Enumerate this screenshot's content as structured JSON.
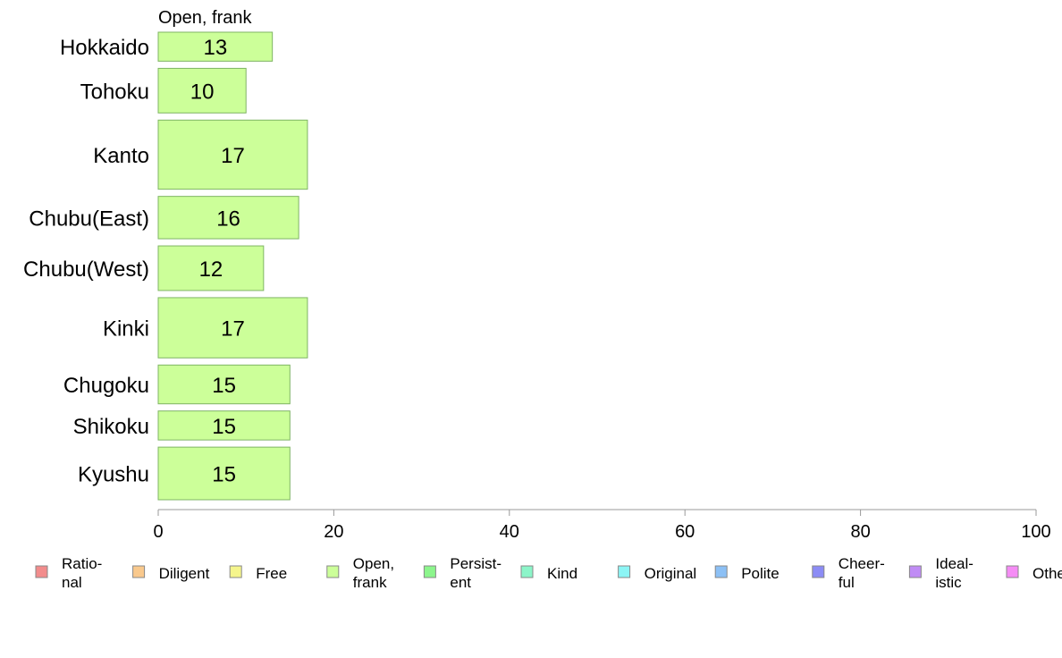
{
  "chart_data": {
    "type": "bar",
    "orientation": "horizontal",
    "title": "Open, frank",
    "categories": [
      "Hokkaido",
      "Tohoku",
      "Kanto",
      "Chubu(East)",
      "Chubu(West)",
      "Kinki",
      "Chugoku",
      "Shikoku",
      "Kyushu"
    ],
    "values": [
      13,
      10,
      17,
      16,
      12,
      17,
      15,
      15,
      15
    ],
    "relative_widths": [
      0.65,
      1.0,
      1.55,
      0.95,
      1.0,
      1.35,
      0.87,
      0.65,
      1.18
    ],
    "xlim": [
      0,
      100
    ],
    "xticks": [
      0,
      20,
      40,
      60,
      80,
      100
    ],
    "grid": false,
    "bar_color": "#ccff99",
    "legend_position": "bottom",
    "legend": [
      {
        "line1": "Ratio-",
        "line2": "nal",
        "color": "#f28c8c"
      },
      {
        "line1": "Diligent",
        "line2": "",
        "color": "#f9c98d"
      },
      {
        "line1": "Free",
        "line2": "",
        "color": "#f5f58c"
      },
      {
        "line1": "Open,",
        "line2": "frank",
        "color": "#ccff99"
      },
      {
        "line1": "Persist-",
        "line2": "ent",
        "color": "#8cf58c"
      },
      {
        "line1": "Kind",
        "line2": "",
        "color": "#8cf5c9"
      },
      {
        "line1": "Original",
        "line2": "",
        "color": "#8cf5f5"
      },
      {
        "line1": "Polite",
        "line2": "",
        "color": "#8cc0f5"
      },
      {
        "line1": "Cheer-",
        "line2": "ful",
        "color": "#8c8cf5"
      },
      {
        "line1": "Ideal-",
        "line2": "istic",
        "color": "#c08cf5"
      },
      {
        "line1": "Other",
        "line2": "",
        "color": "#f58cf5"
      }
    ]
  }
}
